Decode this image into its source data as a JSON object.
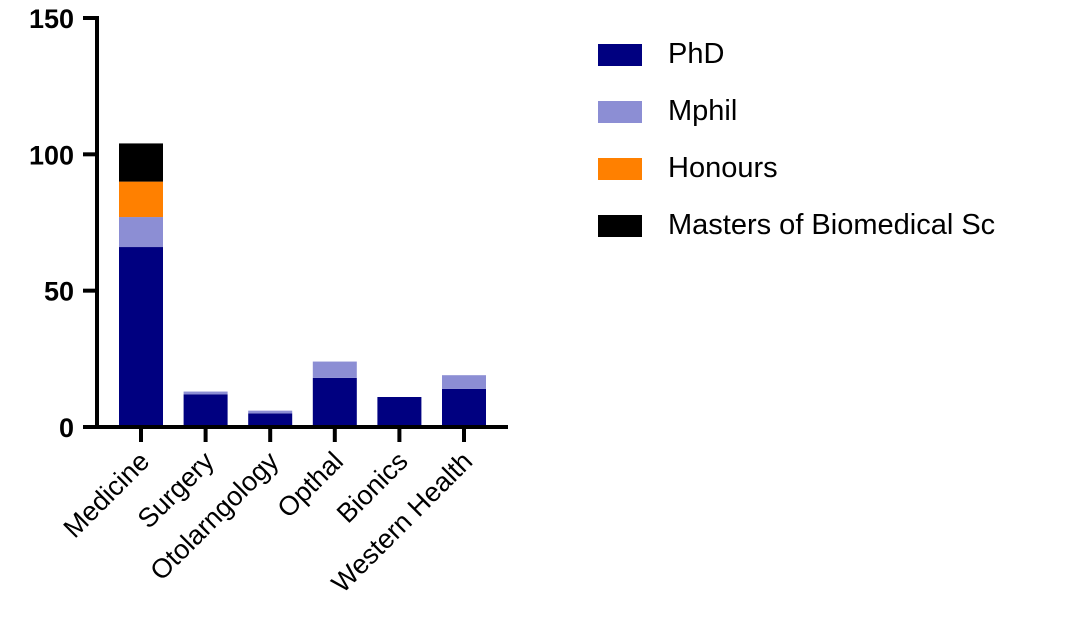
{
  "chart_data": {
    "type": "bar",
    "stacked": true,
    "categories": [
      "Medicine",
      "Surgery",
      "Otolarngology",
      "Opthal",
      "Bionics",
      "Western Health"
    ],
    "series": [
      {
        "name": "PhD",
        "color": "#000080",
        "values": [
          66,
          12,
          5,
          18,
          11,
          14
        ]
      },
      {
        "name": "Mphil",
        "color": "#8C8ED4",
        "values": [
          11,
          1,
          1,
          6,
          0,
          5
        ]
      },
      {
        "name": "Honours",
        "color": "#FF8000",
        "values": [
          13,
          0,
          0,
          0,
          0,
          0
        ]
      },
      {
        "name": "Masters of Biomedical Sc",
        "color": "#000000",
        "values": [
          14,
          0,
          0,
          0,
          0,
          0
        ]
      }
    ],
    "yticks": [
      0,
      50,
      100,
      150
    ],
    "ylim": [
      0,
      150
    ],
    "grid": false,
    "legend_position": "right"
  }
}
